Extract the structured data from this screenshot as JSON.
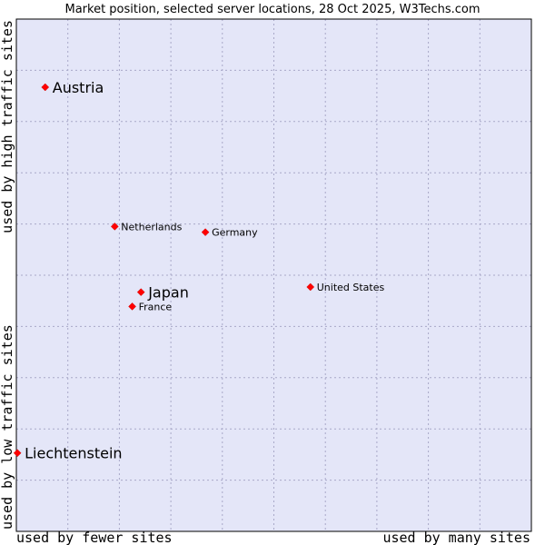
{
  "chart_data": {
    "type": "scatter",
    "title": "Market position, selected server locations, 28 Oct 2025, W3Techs.com",
    "xlabel_left": "used by fewer sites",
    "xlabel_right": "used by many sites",
    "ylabel_top": "used by high traffic sites",
    "ylabel_bottom": "used by low traffic sites",
    "xlim": [
      0,
      100
    ],
    "ylim": [
      0,
      100
    ],
    "grid": true,
    "colors": {
      "plot_bg": "#e4e6f8",
      "point": "#ff0000",
      "border": "#000000"
    },
    "points": [
      {
        "label": "Austria",
        "x": 5.6,
        "y": 86.7,
        "size": "large"
      },
      {
        "label": "Netherlands",
        "x": 19.1,
        "y": 59.5,
        "size": "small"
      },
      {
        "label": "Germany",
        "x": 36.7,
        "y": 58.4,
        "size": "small"
      },
      {
        "label": "United States",
        "x": 57.1,
        "y": 47.7,
        "size": "small"
      },
      {
        "label": "Japan",
        "x": 24.2,
        "y": 46.7,
        "size": "large"
      },
      {
        "label": "France",
        "x": 22.5,
        "y": 43.9,
        "size": "small"
      },
      {
        "label": "Liechtenstein",
        "x": 0.2,
        "y": 15.3,
        "size": "large"
      }
    ]
  }
}
